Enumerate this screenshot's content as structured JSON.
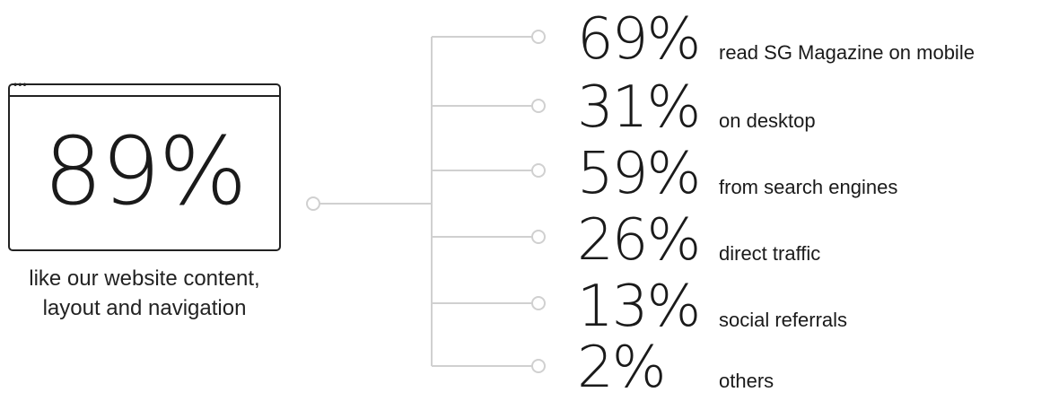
{
  "main_stat": {
    "value": "89%",
    "caption_line1": "like our website content,",
    "caption_line2": "layout and navigation",
    "window_dots": "•••"
  },
  "stats": [
    {
      "value": "69%",
      "label": "read SG Magazine on mobile"
    },
    {
      "value": "31%",
      "label": "on desktop"
    },
    {
      "value": "59%",
      "label": "from search engines"
    },
    {
      "value": "26%",
      "label": "direct traffic"
    },
    {
      "value": "13%",
      "label": "social referrals"
    },
    {
      "value": "2%",
      "label": "others"
    }
  ],
  "colors": {
    "line": "#d0d0d0",
    "text": "#1a1a1a",
    "frame": "#222222"
  }
}
